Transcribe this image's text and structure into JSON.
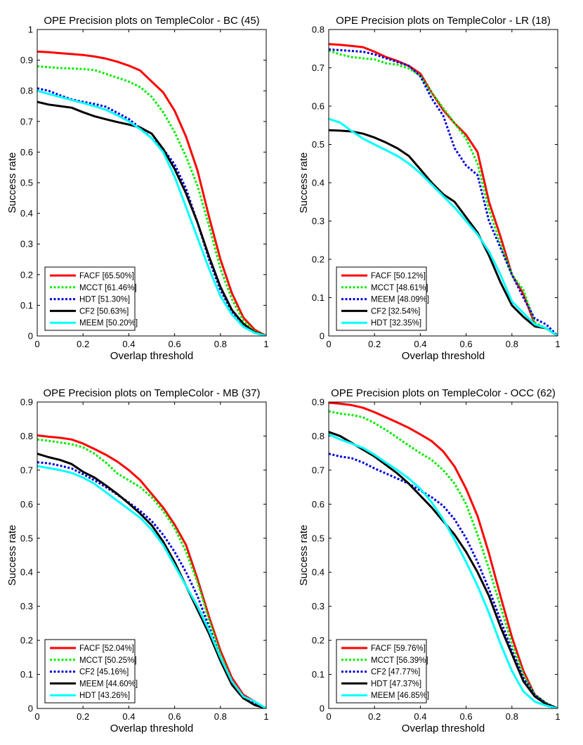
{
  "chart_data": [
    {
      "type": "line",
      "title": "OPE Precision plots on TempleColor - BC (45)",
      "xlabel": "Overlap threshold",
      "ylabel": "Success rate",
      "xlim": [
        0,
        1
      ],
      "ylim": [
        0,
        1
      ],
      "xticks": [
        "0",
        "0.2",
        "0.4",
        "0.6",
        "0.8",
        "1"
      ],
      "yticks": [
        "0",
        "0.1",
        "0.2",
        "0.3",
        "0.4",
        "0.5",
        "0.6",
        "0.7",
        "0.8",
        "0.9",
        "1"
      ],
      "x": [
        0,
        0.05,
        0.1,
        0.15,
        0.2,
        0.25,
        0.3,
        0.35,
        0.4,
        0.45,
        0.5,
        0.55,
        0.6,
        0.65,
        0.7,
        0.75,
        0.8,
        0.85,
        0.9,
        0.95,
        1
      ],
      "series": [
        {
          "name": "FACF [65.50%]",
          "color": "#ff0000",
          "dash": "solid",
          "values": [
            0.928,
            0.926,
            0.923,
            0.92,
            0.917,
            0.912,
            0.905,
            0.895,
            0.882,
            0.866,
            0.83,
            0.795,
            0.735,
            0.65,
            0.54,
            0.39,
            0.25,
            0.14,
            0.06,
            0.02,
            0.0
          ]
        },
        {
          "name": "MCCT [61.46%]",
          "color": "#00ee00",
          "dash": "dotted",
          "values": [
            0.88,
            0.877,
            0.874,
            0.873,
            0.871,
            0.868,
            0.855,
            0.843,
            0.83,
            0.812,
            0.78,
            0.73,
            0.665,
            0.585,
            0.49,
            0.36,
            0.22,
            0.12,
            0.05,
            0.015,
            0.0
          ]
        },
        {
          "name": "HDT [51.30%]",
          "color": "#0000dd",
          "dash": "dotted",
          "values": [
            0.808,
            0.8,
            0.785,
            0.772,
            0.764,
            0.757,
            0.748,
            0.728,
            0.708,
            0.678,
            0.645,
            0.61,
            0.56,
            0.48,
            0.37,
            0.25,
            0.15,
            0.08,
            0.035,
            0.012,
            0.0
          ]
        },
        {
          "name": "CF2 [50.63%]",
          "color": "#000000",
          "dash": "solid",
          "values": [
            0.764,
            0.755,
            0.75,
            0.745,
            0.73,
            0.717,
            0.707,
            0.698,
            0.69,
            0.68,
            0.66,
            0.61,
            0.545,
            0.465,
            0.37,
            0.26,
            0.16,
            0.085,
            0.04,
            0.012,
            0.0
          ]
        },
        {
          "name": "MEEM [50.20%]",
          "color": "#00ffff",
          "dash": "solid",
          "values": [
            0.8,
            0.79,
            0.78,
            0.77,
            0.76,
            0.75,
            0.738,
            0.72,
            0.7,
            0.675,
            0.645,
            0.6,
            0.52,
            0.42,
            0.32,
            0.22,
            0.13,
            0.07,
            0.03,
            0.01,
            0.0
          ]
        }
      ]
    },
    {
      "type": "line",
      "title": "OPE Precision plots on TempleColor - LR (18)",
      "xlabel": "Overlap threshold",
      "ylabel": "Success rate",
      "xlim": [
        0,
        1
      ],
      "ylim": [
        0,
        0.8
      ],
      "xticks": [
        "0",
        "0.2",
        "0.4",
        "0.6",
        "0.8",
        "1"
      ],
      "yticks": [
        "0",
        "0.1",
        "0.2",
        "0.3",
        "0.4",
        "0.5",
        "0.6",
        "0.7",
        "0.8"
      ],
      "x": [
        0,
        0.05,
        0.1,
        0.15,
        0.2,
        0.25,
        0.3,
        0.35,
        0.4,
        0.45,
        0.5,
        0.55,
        0.6,
        0.65,
        0.7,
        0.75,
        0.8,
        0.85,
        0.9,
        0.95,
        1
      ],
      "series": [
        {
          "name": "FACF [50.12%]",
          "color": "#ff0000",
          "dash": "solid",
          "values": [
            0.762,
            0.76,
            0.757,
            0.754,
            0.742,
            0.728,
            0.718,
            0.705,
            0.685,
            0.635,
            0.59,
            0.555,
            0.525,
            0.48,
            0.35,
            0.26,
            0.16,
            0.11,
            0.03,
            0.02,
            0.0
          ]
        },
        {
          "name": "MCCT [48.61%]",
          "color": "#00ee00",
          "dash": "dotted",
          "values": [
            0.745,
            0.735,
            0.728,
            0.725,
            0.722,
            0.712,
            0.708,
            0.698,
            0.68,
            0.635,
            0.595,
            0.555,
            0.515,
            0.45,
            0.33,
            0.24,
            0.16,
            0.12,
            0.035,
            0.02,
            0.0
          ]
        },
        {
          "name": "MEEM [48.09%]",
          "color": "#0000dd",
          "dash": "dotted",
          "values": [
            0.748,
            0.746,
            0.744,
            0.742,
            0.735,
            0.725,
            0.715,
            0.705,
            0.678,
            0.62,
            0.575,
            0.49,
            0.445,
            0.42,
            0.3,
            0.23,
            0.16,
            0.1,
            0.045,
            0.03,
            0.0
          ]
        },
        {
          "name": "CF2 [32.54%]",
          "color": "#000000",
          "dash": "solid",
          "values": [
            0.537,
            0.536,
            0.534,
            0.528,
            0.518,
            0.505,
            0.49,
            0.47,
            0.435,
            0.4,
            0.37,
            0.35,
            0.31,
            0.27,
            0.21,
            0.14,
            0.08,
            0.05,
            0.025,
            0.02,
            0.0
          ]
        },
        {
          "name": "HDT [32.35%]",
          "color": "#00ffff",
          "dash": "solid",
          "values": [
            0.567,
            0.557,
            0.535,
            0.515,
            0.5,
            0.485,
            0.47,
            0.45,
            0.425,
            0.395,
            0.365,
            0.335,
            0.3,
            0.265,
            0.22,
            0.16,
            0.09,
            0.06,
            0.03,
            0.02,
            0.0
          ]
        }
      ]
    },
    {
      "type": "line",
      "title": "OPE Precision plots on TempleColor - MB (37)",
      "xlabel": "Overlap threshold",
      "ylabel": "Success rate",
      "xlim": [
        0,
        1
      ],
      "ylim": [
        0,
        0.9
      ],
      "xticks": [
        "0",
        "0.2",
        "0.4",
        "0.6",
        "0.8",
        "1"
      ],
      "yticks": [
        "0",
        "0.1",
        "0.2",
        "0.3",
        "0.4",
        "0.5",
        "0.6",
        "0.7",
        "0.8",
        "0.9"
      ],
      "x": [
        0,
        0.05,
        0.1,
        0.15,
        0.2,
        0.25,
        0.3,
        0.35,
        0.4,
        0.45,
        0.5,
        0.55,
        0.6,
        0.65,
        0.7,
        0.75,
        0.8,
        0.85,
        0.9,
        0.95,
        1
      ],
      "series": [
        {
          "name": "FACF [52.04%]",
          "color": "#ff0000",
          "dash": "solid",
          "values": [
            0.802,
            0.798,
            0.795,
            0.79,
            0.778,
            0.762,
            0.745,
            0.725,
            0.7,
            0.67,
            0.63,
            0.59,
            0.54,
            0.48,
            0.38,
            0.27,
            0.17,
            0.09,
            0.04,
            0.02,
            0.0
          ]
        },
        {
          "name": "MCCT [50.25%]",
          "color": "#00ee00",
          "dash": "dotted",
          "values": [
            0.79,
            0.786,
            0.781,
            0.776,
            0.767,
            0.748,
            0.722,
            0.69,
            0.67,
            0.65,
            0.62,
            0.58,
            0.53,
            0.46,
            0.37,
            0.26,
            0.16,
            0.08,
            0.035,
            0.015,
            0.0
          ]
        },
        {
          "name": "CF2 [45.16%]",
          "color": "#0000dd",
          "dash": "dotted",
          "values": [
            0.723,
            0.72,
            0.713,
            0.705,
            0.688,
            0.67,
            0.65,
            0.628,
            0.605,
            0.58,
            0.55,
            0.51,
            0.46,
            0.4,
            0.33,
            0.24,
            0.15,
            0.08,
            0.035,
            0.015,
            0.0
          ]
        },
        {
          "name": "MEEM [44.60%]",
          "color": "#000000",
          "dash": "solid",
          "values": [
            0.748,
            0.738,
            0.73,
            0.718,
            0.695,
            0.678,
            0.655,
            0.63,
            0.602,
            0.572,
            0.538,
            0.49,
            0.43,
            0.36,
            0.29,
            0.22,
            0.14,
            0.07,
            0.03,
            0.01,
            0.0
          ]
        },
        {
          "name": "HDT [43.26%]",
          "color": "#00ffff",
          "dash": "solid",
          "values": [
            0.712,
            0.706,
            0.7,
            0.692,
            0.678,
            0.66,
            0.635,
            0.61,
            0.585,
            0.56,
            0.525,
            0.48,
            0.42,
            0.36,
            0.3,
            0.23,
            0.15,
            0.08,
            0.035,
            0.02,
            0.0
          ]
        }
      ]
    },
    {
      "type": "line",
      "title": "OPE Precision plots on TempleColor - OCC (62)",
      "xlabel": "Overlap threshold",
      "ylabel": "Success rate",
      "xlim": [
        0,
        1
      ],
      "ylim": [
        0,
        0.9
      ],
      "xticks": [
        "0",
        "0.2",
        "0.4",
        "0.6",
        "0.8",
        "1"
      ],
      "yticks": [
        "0",
        "0.1",
        "0.2",
        "0.3",
        "0.4",
        "0.5",
        "0.6",
        "0.7",
        "0.8",
        "0.9"
      ],
      "x": [
        0,
        0.05,
        0.1,
        0.15,
        0.2,
        0.25,
        0.3,
        0.35,
        0.4,
        0.45,
        0.5,
        0.55,
        0.6,
        0.65,
        0.7,
        0.75,
        0.8,
        0.85,
        0.9,
        0.95,
        1
      ],
      "series": [
        {
          "name": "FACF [59.76%]",
          "color": "#ff0000",
          "dash": "solid",
          "values": [
            0.898,
            0.895,
            0.891,
            0.883,
            0.87,
            0.855,
            0.84,
            0.824,
            0.805,
            0.785,
            0.755,
            0.71,
            0.645,
            0.565,
            0.455,
            0.33,
            0.21,
            0.11,
            0.04,
            0.015,
            0.0
          ]
        },
        {
          "name": "MCCT [56.39%]",
          "color": "#00ee00",
          "dash": "dotted",
          "values": [
            0.873,
            0.866,
            0.862,
            0.855,
            0.838,
            0.818,
            0.795,
            0.772,
            0.75,
            0.73,
            0.7,
            0.66,
            0.6,
            0.51,
            0.41,
            0.3,
            0.19,
            0.1,
            0.04,
            0.015,
            0.0
          ]
        },
        {
          "name": "CF2 [47.77%]",
          "color": "#0000dd",
          "dash": "dotted",
          "values": [
            0.748,
            0.74,
            0.735,
            0.722,
            0.705,
            0.69,
            0.675,
            0.66,
            0.64,
            0.62,
            0.595,
            0.555,
            0.5,
            0.43,
            0.35,
            0.26,
            0.17,
            0.09,
            0.04,
            0.015,
            0.0
          ]
        },
        {
          "name": "HDT [47.37%]",
          "color": "#000000",
          "dash": "solid",
          "values": [
            0.812,
            0.8,
            0.78,
            0.76,
            0.74,
            0.715,
            0.69,
            0.66,
            0.625,
            0.59,
            0.55,
            0.51,
            0.46,
            0.4,
            0.33,
            0.24,
            0.16,
            0.08,
            0.035,
            0.012,
            0.0
          ]
        },
        {
          "name": "MEEM [46.85%]",
          "color": "#00ffff",
          "dash": "solid",
          "values": [
            0.805,
            0.79,
            0.778,
            0.765,
            0.745,
            0.722,
            0.7,
            0.675,
            0.645,
            0.605,
            0.555,
            0.495,
            0.43,
            0.36,
            0.28,
            0.19,
            0.11,
            0.05,
            0.02,
            0.008,
            0.0
          ]
        }
      ]
    }
  ]
}
